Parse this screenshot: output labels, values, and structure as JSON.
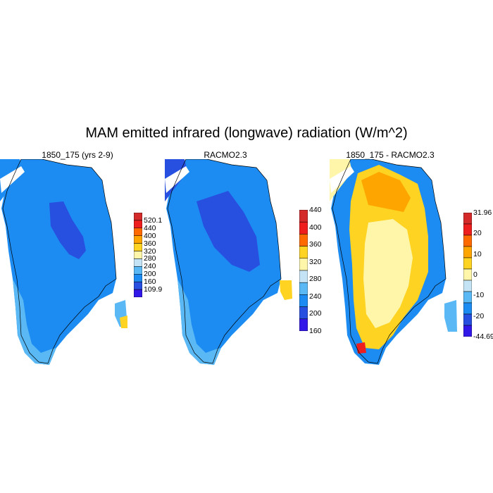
{
  "title": "MAM emitted infrared (longwave) radiation (W/m^2)",
  "panels": [
    {
      "title": "1850_175 (yrs 2-9)",
      "colorbar": {
        "labels": [
          "520.1",
          "440",
          "400",
          "360",
          "320",
          "280",
          "240",
          "200",
          "160",
          "109.9"
        ],
        "colors": [
          "#d42a2a",
          "#ee1e1e",
          "#ff6a00",
          "#ffa500",
          "#ffd321",
          "#fff6a9",
          "#c4e4f6",
          "#5ab9f4",
          "#1c8cf2",
          "#2850e0",
          "#3218e8"
        ]
      }
    },
    {
      "title": "RACMO2.3",
      "colorbar": {
        "labels": [
          "440",
          "400",
          "360",
          "320",
          "280",
          "240",
          "200",
          "160"
        ],
        "colors": [
          "#d42a2a",
          "#ee1e1e",
          "#ff6a00",
          "#ffd321",
          "#fff6a9",
          "#c4e4f6",
          "#5ab9f4",
          "#1c8cf2",
          "#2850e0",
          "#3218e8"
        ]
      }
    },
    {
      "title": "1850_175 - RACMO2.3",
      "colorbar": {
        "labels": [
          "31.96",
          "20",
          "10",
          "0",
          "-10",
          "-20",
          "-44.69"
        ],
        "colors": [
          "#d42a2a",
          "#ee1e1e",
          "#ff6a00",
          "#ffa500",
          "#ffd321",
          "#fff6a9",
          "#c4e4f6",
          "#5ab9f4",
          "#1c8cf2",
          "#2850e0",
          "#3218e8"
        ]
      }
    }
  ]
}
